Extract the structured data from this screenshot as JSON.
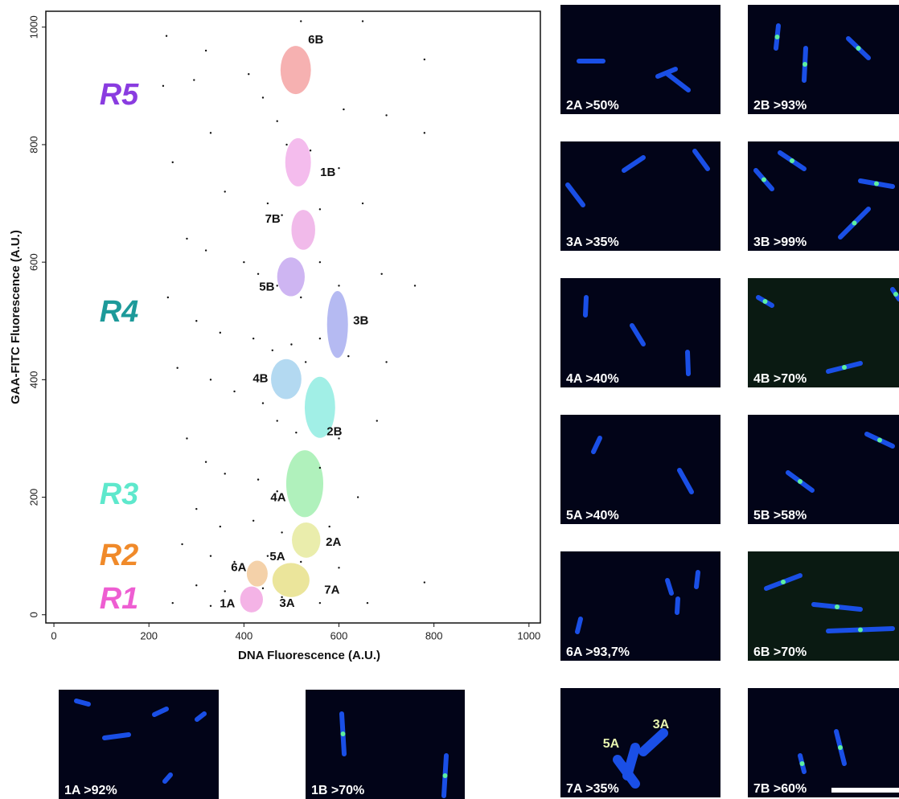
{
  "chart_data": {
    "type": "scatter",
    "x_label": "DNA Fluorescence (A.U.)",
    "y_label": "GAA-FITC Fluorescence (A.U.)",
    "xlim": [
      -17,
      1024
    ],
    "ylim": [
      -14,
      1027
    ],
    "xticks": [
      0,
      200,
      400,
      600,
      800,
      1000
    ],
    "yticks": [
      0,
      200,
      400,
      600,
      800,
      1000
    ],
    "point_color": "#111111",
    "x": [
      237,
      320,
      410,
      520,
      650,
      780,
      230,
      295,
      440,
      610,
      700,
      780,
      330,
      470,
      490,
      540,
      250,
      600,
      360,
      450,
      480,
      560,
      650,
      280,
      320,
      400,
      430,
      470,
      520,
      560,
      600,
      690,
      760,
      240,
      300,
      350,
      420,
      460,
      500,
      530,
      560,
      620,
      700,
      260,
      330,
      380,
      440,
      470,
      510,
      600,
      680,
      280,
      320,
      360,
      430,
      470,
      560,
      640,
      300,
      350,
      420,
      480,
      580,
      270,
      330,
      380,
      450,
      520,
      600,
      300,
      360,
      440,
      480,
      560,
      660,
      780,
      250,
      330
    ],
    "values": [
      985,
      960,
      920,
      1010,
      1010,
      945,
      900,
      910,
      880,
      860,
      850,
      820,
      820,
      840,
      800,
      790,
      770,
      760,
      720,
      700,
      680,
      690,
      700,
      640,
      620,
      600,
      580,
      560,
      540,
      600,
      560,
      580,
      560,
      540,
      500,
      480,
      470,
      450,
      460,
      430,
      470,
      440,
      430,
      420,
      400,
      380,
      360,
      330,
      310,
      300,
      330,
      300,
      260,
      240,
      230,
      210,
      250,
      200,
      180,
      150,
      160,
      140,
      150,
      120,
      100,
      90,
      100,
      90,
      80,
      50,
      40,
      45,
      30,
      20,
      20,
      55,
      20,
      15
    ],
    "gates": [
      {
        "label": "6B",
        "x": 509,
        "y": 927,
        "rx": 32,
        "ry": 41,
        "color": "#f5a3a3"
      },
      {
        "label": "1B",
        "x": 514,
        "y": 770,
        "rx": 27,
        "ry": 41,
        "color": "#f2b0ea"
      },
      {
        "label": "7B",
        "x": 525,
        "y": 655,
        "rx": 25,
        "ry": 34,
        "color": "#eeaee6"
      },
      {
        "label": "5B",
        "x": 499,
        "y": 575,
        "rx": 29,
        "ry": 33,
        "color": "#c6a8f0"
      },
      {
        "label": "3B",
        "x": 597,
        "y": 494,
        "rx": 22,
        "ry": 57,
        "color": "#a8aef0"
      },
      {
        "label": "4B",
        "x": 489,
        "y": 401,
        "rx": 32,
        "ry": 34,
        "color": "#a6d2ee"
      },
      {
        "label": "2B",
        "x": 560,
        "y": 353,
        "rx": 32,
        "ry": 52,
        "color": "#90ece2"
      },
      {
        "label": "4A",
        "x": 528,
        "y": 223,
        "rx": 39,
        "ry": 57,
        "color": "#a2eeb0"
      },
      {
        "label": "2A",
        "x": 531,
        "y": 127,
        "rx": 30,
        "ry": 30,
        "color": "#e6ea9e"
      },
      {
        "label": "6A",
        "x": 428,
        "y": 70,
        "rx": 22,
        "ry": 22,
        "color": "#f2c99a"
      },
      {
        "label": "7A",
        "x": 499,
        "y": 59,
        "rx": 39,
        "ry": 29,
        "color": "#e8e08a"
      },
      {
        "label": "1A",
        "x": 416,
        "y": 26,
        "rx": 24,
        "ry": 22,
        "color": "#f2a6e2"
      }
    ],
    "extra_labels": [
      "5A",
      "3A"
    ],
    "regions": [
      {
        "label": "R5",
        "color": "#8a3ce0"
      },
      {
        "label": "R4",
        "color": "#1d9a9a"
      },
      {
        "label": "R3",
        "color": "#5ee8cc"
      },
      {
        "label": "R2",
        "color": "#f08a2a"
      },
      {
        "label": "R1",
        "color": "#ee5ed2"
      }
    ]
  },
  "panels": [
    "2A >50%",
    "2B >93%",
    "3A >35%",
    "3B >99%",
    "4A >40%",
    "4B >70%",
    "5A >40%",
    "5B  >58%",
    "6A >93,7%",
    "6B  >70%",
    "7A  >35%",
    "7B >60%",
    "1A >92%",
    "1B >70%"
  ],
  "panel_annotations": [
    "5A",
    "3A"
  ]
}
